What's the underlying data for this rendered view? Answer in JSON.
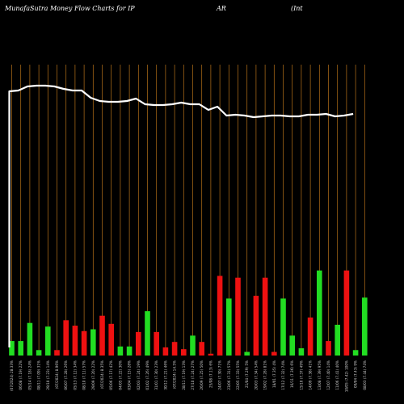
{
  "header": {
    "title": "MunafaSutra  Money Flow  Charts for IP",
    "symbol": "AR",
    "company": "(Int"
  },
  "chart_data": {
    "type": "bar",
    "grid": true,
    "colors": {
      "background": "#000000",
      "gridline": "#b8731a",
      "line": "#ffffff",
      "up": "#22dd22",
      "down": "#ee1111",
      "label": "#cfcfcf"
    },
    "price_line": [
      97,
      98,
      103,
      104,
      104,
      103,
      100,
      98,
      98,
      89,
      85,
      84,
      84,
      85,
      88,
      81,
      80,
      80,
      81,
      83,
      81,
      81,
      74,
      78,
      67,
      68,
      67,
      65,
      66,
      67,
      67,
      66,
      66,
      68,
      68,
      69,
      66,
      67,
      69
    ],
    "bars": [
      {
        "label": "(07/2024) 28.33%",
        "value": 16,
        "color": "up"
      },
      {
        "label": "06/08 (7.19) 22%",
        "value": 16,
        "color": "up"
      },
      {
        "label": "05/14 (7.18) 24%",
        "value": 36,
        "color": "up"
      },
      {
        "label": "08/11 (7.09) 31%",
        "value": 6,
        "color": "up"
      },
      {
        "label": "29/10 (7.23) 14%",
        "value": 32,
        "color": "up"
      },
      {
        "label": "(07/2024) 8.96%",
        "value": 6,
        "color": "down"
      },
      {
        "label": "06/07 (7.28) 26%",
        "value": 39,
        "color": "down"
      },
      {
        "label": "05/13 (7.12) 34%",
        "value": 33,
        "color": "down"
      },
      {
        "label": "08/10 (7.11) 57%",
        "value": 27,
        "color": "down"
      },
      {
        "label": "29/09 (7.20) 22%",
        "value": 29,
        "color": "up"
      },
      {
        "label": "(07/2024) 8.35%",
        "value": 44,
        "color": "down"
      },
      {
        "label": "05/06 (7.17) 42%",
        "value": 35,
        "color": "down"
      },
      {
        "label": "04/05 (7.22) 30%",
        "value": 10,
        "color": "up"
      },
      {
        "label": "03/04 (7.15) 28%",
        "value": 10,
        "color": "up"
      },
      {
        "label": "02/03 (7.24) 19%",
        "value": 26,
        "color": "down"
      },
      {
        "label": "01/02 (7.26) 49%",
        "value": 49,
        "color": "up"
      },
      {
        "label": "31/01 (7.30) 23%",
        "value": 26,
        "color": "down"
      },
      {
        "label": "30/12 (7.21) 46%",
        "value": 9,
        "color": "down"
      },
      {
        "label": "(07/2024) 14.5%",
        "value": 15,
        "color": "down"
      },
      {
        "label": "28/11 (7.19) 13%",
        "value": 7,
        "color": "down"
      },
      {
        "label": "27/10 (7.24) 27%",
        "value": 22,
        "color": "up"
      },
      {
        "label": "26/09 (7.25) 50%",
        "value": 15,
        "color": "down"
      },
      {
        "label": "25/08 (7.13) 6%",
        "value": 2,
        "color": "down"
      },
      {
        "label": "24/07 (7.30) 71%",
        "value": 88,
        "color": "down"
      },
      {
        "label": "23/06 (7.31) 57%",
        "value": 63,
        "color": "up"
      },
      {
        "label": "22/05 (7.33) 55%",
        "value": 86,
        "color": "down"
      },
      {
        "label": "21/04 (7.29) 5%",
        "value": 4,
        "color": "up"
      },
      {
        "label": "20/03 (7.34) 54%",
        "value": 66,
        "color": "down"
      },
      {
        "label": "19/02 (7.28) 81%",
        "value": 86,
        "color": "down"
      },
      {
        "label": "18/01 (7.35) 4%",
        "value": 4,
        "color": "down"
      },
      {
        "label": "17/12 (7.32) 74%",
        "value": 63,
        "color": "up"
      },
      {
        "label": "16/11 (7.36) 6%",
        "value": 22,
        "color": "up"
      },
      {
        "label": "15/10 (7.37) 49%",
        "value": 8,
        "color": "up"
      },
      {
        "label": "14/09 (7.38) 41%",
        "value": 42,
        "color": "down"
      },
      {
        "label": "13/08 (7.39) 95%",
        "value": 94,
        "color": "up"
      },
      {
        "label": "12/07 (7.40) 14%",
        "value": 16,
        "color": "down"
      },
      {
        "label": "11/06 (7.41) 40%",
        "value": 34,
        "color": "up"
      },
      {
        "label": "10/05 (7.42) 100%",
        "value": 94,
        "color": "down"
      },
      {
        "label": "09/04 (7.43) 9%",
        "value": 6,
        "color": "up"
      },
      {
        "label": "08/03 (7.44) 74%",
        "value": 64,
        "color": "up"
      }
    ]
  }
}
